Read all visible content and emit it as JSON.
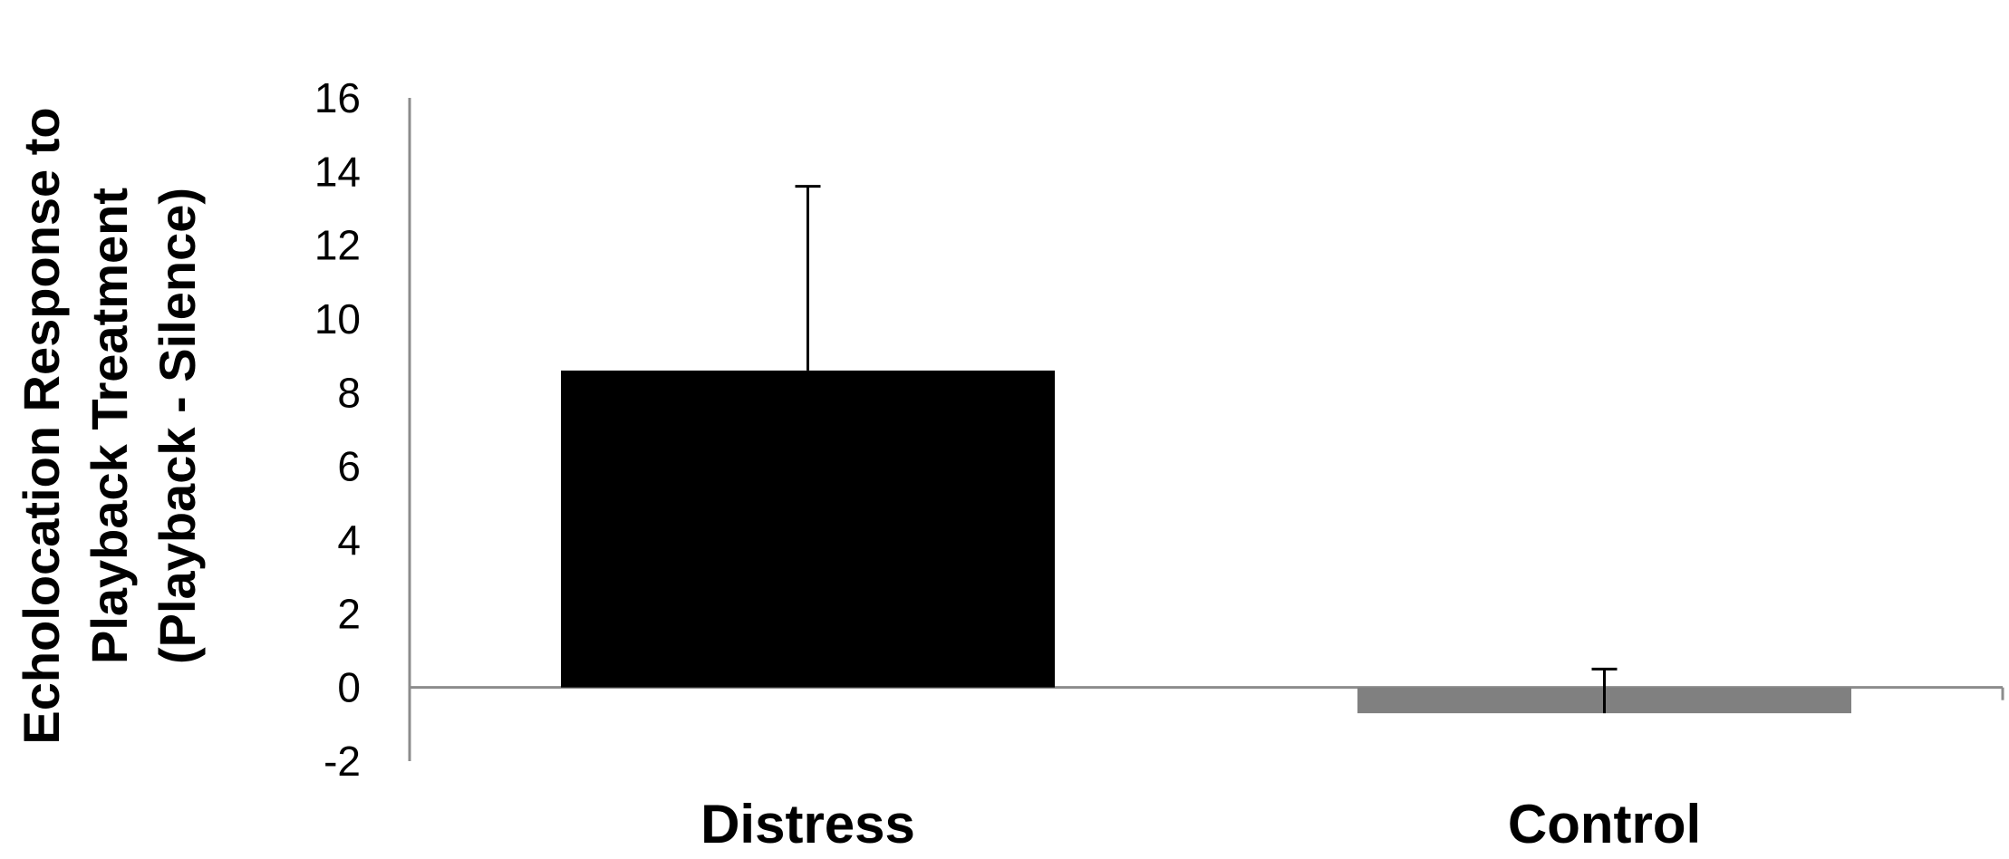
{
  "chart_data": {
    "type": "bar",
    "title": "",
    "xlabel": "",
    "ylabel_lines": [
      "Echolocation Response to",
      "Playback Treatment",
      "(Playback - Silence)"
    ],
    "categories": [
      "Distress",
      "Control"
    ],
    "values": [
      8.6,
      -0.7
    ],
    "error_upper": [
      5.0,
      1.2
    ],
    "colors": [
      "#000000",
      "#808080"
    ],
    "ylim": [
      -2,
      16
    ],
    "yticks": [
      -2,
      0,
      2,
      4,
      6,
      8,
      10,
      12,
      14,
      16
    ],
    "ytick_labels": [
      "-2",
      "0",
      "2",
      "4",
      "6",
      "8",
      "10",
      "12",
      "14",
      "16"
    ],
    "grid": false,
    "legend": "none"
  }
}
